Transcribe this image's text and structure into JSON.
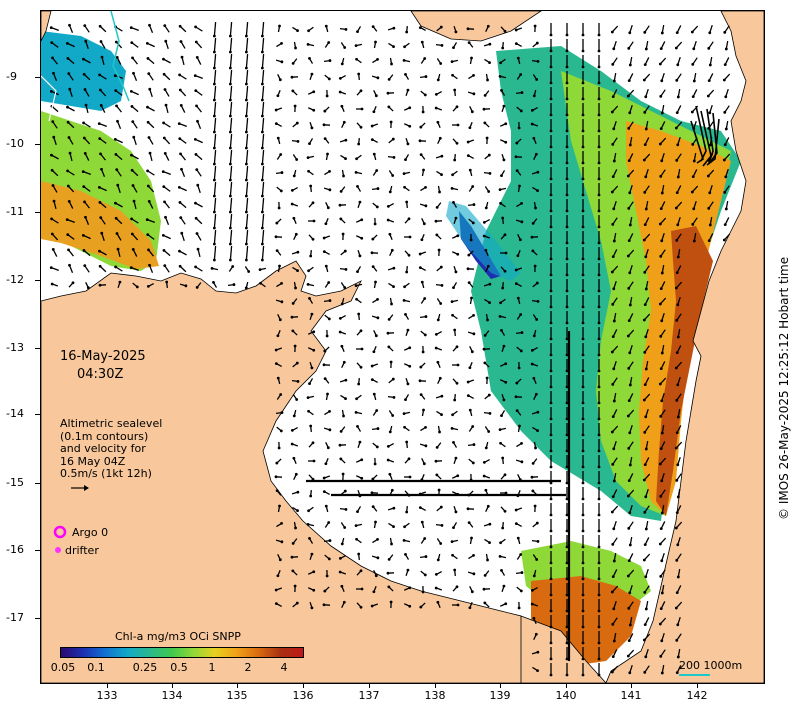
{
  "map": {
    "date": "16-May-2025",
    "time": "04:30Z",
    "altimetry_lines": [
      "Altimetric sealevel",
      "(0.1m contours)",
      "and velocity for",
      "16 May 04Z",
      "0.5m/s (1kt 12h)"
    ],
    "legend": {
      "argo_label": "Argo 0",
      "drifter_label": "drifter",
      "argo_color": "#ff00ff",
      "drifter_color": "#ff33ff"
    },
    "colorbar": {
      "title": "Chl-a mg/m3 OCi SNPP",
      "ticks": [
        "0.05",
        "0.1",
        "0.25",
        "0.5",
        "1",
        "2",
        "4"
      ],
      "colors": [
        "#2a0a6e",
        "#1d2fb0",
        "#1270d0",
        "#12a8c8",
        "#2ab890",
        "#3ec850",
        "#8ed838",
        "#e8d020",
        "#f0a018",
        "#d86a10",
        "#a83010",
        "#c01818"
      ]
    },
    "scale_label": "200  1000m",
    "copyright": "© IMOS 26-May-2025 12:25:12 Hobart time",
    "lat_labels": [
      "-9",
      "-10",
      "-11",
      "-12",
      "-13",
      "-14",
      "-15",
      "-16",
      "-17"
    ],
    "lon_labels": [
      "133",
      "134",
      "135",
      "136",
      "137",
      "138",
      "139",
      "140",
      "141",
      "142"
    ],
    "colors": {
      "land": "#f8c89c",
      "ocean": "#ffffff",
      "arrow": "#000000",
      "scale": "#1ec8c8"
    }
  }
}
